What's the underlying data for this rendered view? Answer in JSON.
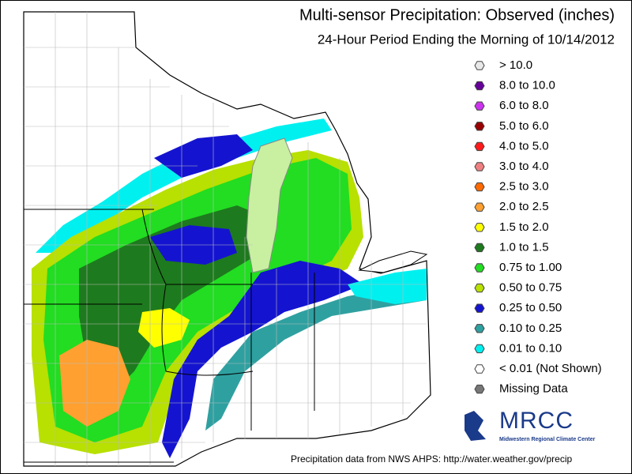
{
  "title": "Multi-sensor Precipitation:  Observed (inches)",
  "subtitle": "24-Hour Period Ending the Morning of 10/14/2012",
  "legend": [
    {
      "label": "> 10.0",
      "color": "#e8e8e8"
    },
    {
      "label": "8.0 to 10.0",
      "color": "#660099"
    },
    {
      "label": "6.0 to 8.0",
      "color": "#cc33ee"
    },
    {
      "label": "5.0 to 6.0",
      "color": "#990000"
    },
    {
      "label": "4.0 to 5.0",
      "color": "#ff1a1a"
    },
    {
      "label": "3.0 to 4.0",
      "color": "#f08080"
    },
    {
      "label": "2.5 to 3.0",
      "color": "#ff6a00"
    },
    {
      "label": "2.0 to 2.5",
      "color": "#ffa030"
    },
    {
      "label": "1.5 to 2.0",
      "color": "#ffff00"
    },
    {
      "label": "1.0 to 1.5",
      "color": "#1e7a1e"
    },
    {
      "label": "0.75 to 1.00",
      "color": "#22dd22"
    },
    {
      "label": "0.50 to 0.75",
      "color": "#b8e000"
    },
    {
      "label": "0.25 to 0.50",
      "color": "#1414d0"
    },
    {
      "label": "0.10 to 0.25",
      "color": "#2fa0a0"
    },
    {
      "label": "0.01 to 0.10",
      "color": "#00f0f0"
    },
    {
      "label": "< 0.01 (Not Shown)",
      "color": "#ffffff"
    },
    {
      "label": "Missing Data",
      "color": "#777777"
    }
  ],
  "logo": {
    "name": "MRCC",
    "subtitle": "Midwestern Regional Climate Center"
  },
  "footer": "Precipitation data from NWS AHPS:  http://water.weather.gov/precip"
}
